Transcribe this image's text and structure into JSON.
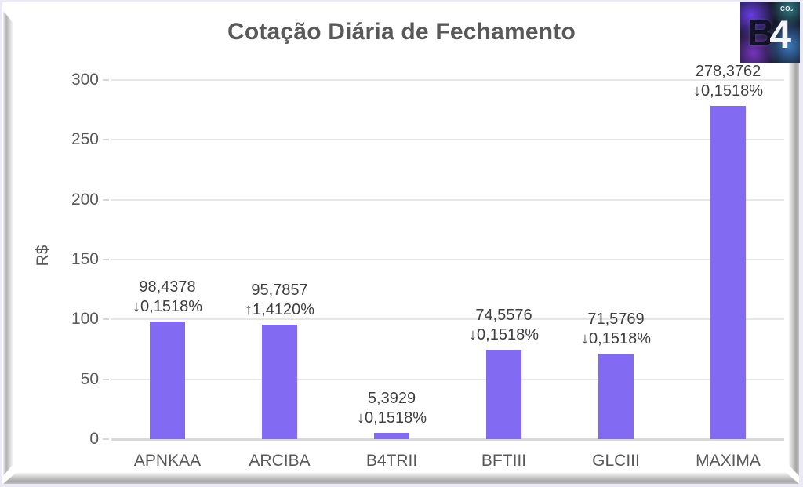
{
  "page": {
    "background": "#ECE9F6"
  },
  "logo": {
    "name": "B4",
    "letter_b": "B",
    "letter_4": "4",
    "badge": "CO₂"
  },
  "chart_data": {
    "type": "bar",
    "title": "Cotação Diária de Fechamento",
    "xlabel": "",
    "ylabel": "R$",
    "categories": [
      "APNKAA",
      "ARCIBA",
      "B4TRII",
      "BFTIII",
      "GLCIII",
      "MAXIMA"
    ],
    "values": [
      98.4378,
      95.7857,
      5.3929,
      74.5576,
      71.5769,
      278.3762
    ],
    "value_labels": [
      "98,4378",
      "95,7857",
      "5,3929",
      "74,5576",
      "71,5769",
      "278,3762"
    ],
    "change_labels": [
      "↓0,1518%",
      "↑1,4120%",
      "↓0,1518%",
      "↓0,1518%",
      "↓0,1518%",
      "↓0,1518%"
    ],
    "change_directions": [
      "down",
      "up",
      "down",
      "down",
      "down",
      "down"
    ],
    "y_ticks": [
      0,
      50,
      100,
      150,
      200,
      250,
      300
    ],
    "ylim": [
      0,
      300
    ],
    "grid": true,
    "legend": "none",
    "bar_color": "#826AF2",
    "grid_color": "#E7E7E7",
    "axis_line_color": "#D9D9D9",
    "text_color": "#595959",
    "annotation_color": "#3F3F3F"
  }
}
